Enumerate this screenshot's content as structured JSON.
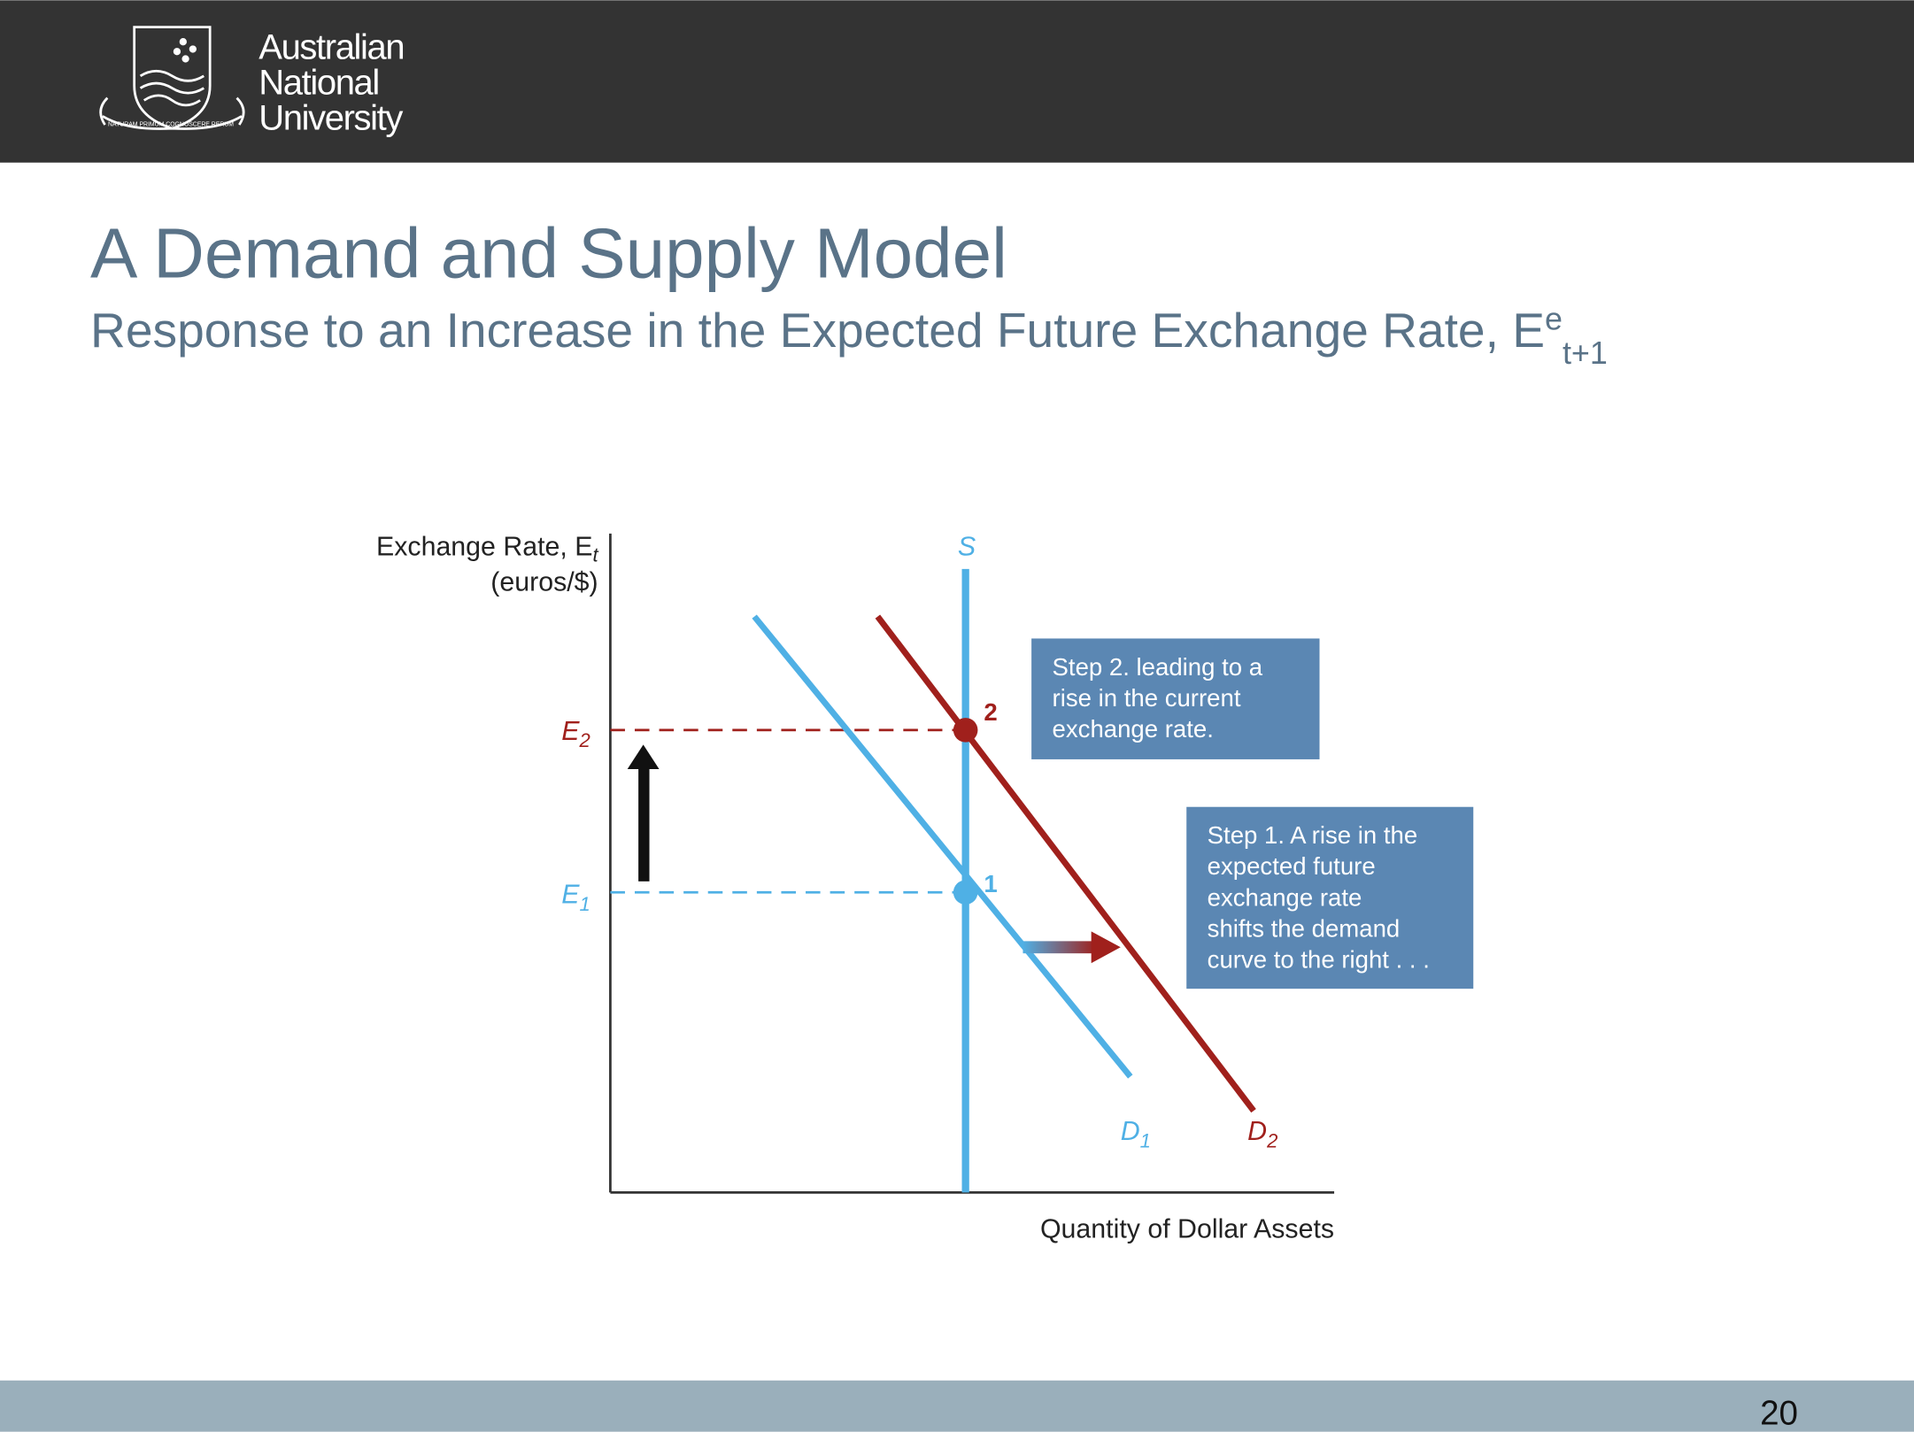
{
  "header": {
    "logo_lines": [
      "Australian",
      "National",
      "University"
    ],
    "motto": "NATURAM PRIMUM COGNOSCERE RERUM"
  },
  "title": "A Demand and Supply Model",
  "subtitle": {
    "text": "Response to an Increase in the Expected Future Exchange Rate, E",
    "sup": "e",
    "sub": "t+1"
  },
  "diagram": {
    "y_axis_label": {
      "text": "Exchange Rate, E",
      "sub": "t"
    },
    "y_axis_unit": "(euros/$)",
    "x_axis_label": "Quantity of Dollar Assets",
    "supply_label": "S",
    "levels": [
      {
        "symbol": "E",
        "sub": "2"
      },
      {
        "symbol": "E",
        "sub": "1"
      }
    ],
    "points": [
      "2",
      "1"
    ],
    "curves": [
      {
        "symbol": "D",
        "sub": "1"
      },
      {
        "symbol": "D",
        "sub": "2"
      }
    ],
    "boxes": [
      {
        "lines": [
          "Step 2. leading to a",
          "rise in the current",
          "exchange rate."
        ]
      },
      {
        "lines": [
          "Step 1. A rise in the",
          "expected future",
          "exchange rate",
          "shifts the demand",
          "curve to the right . . ."
        ]
      }
    ]
  },
  "footer": {
    "page": "20"
  }
}
